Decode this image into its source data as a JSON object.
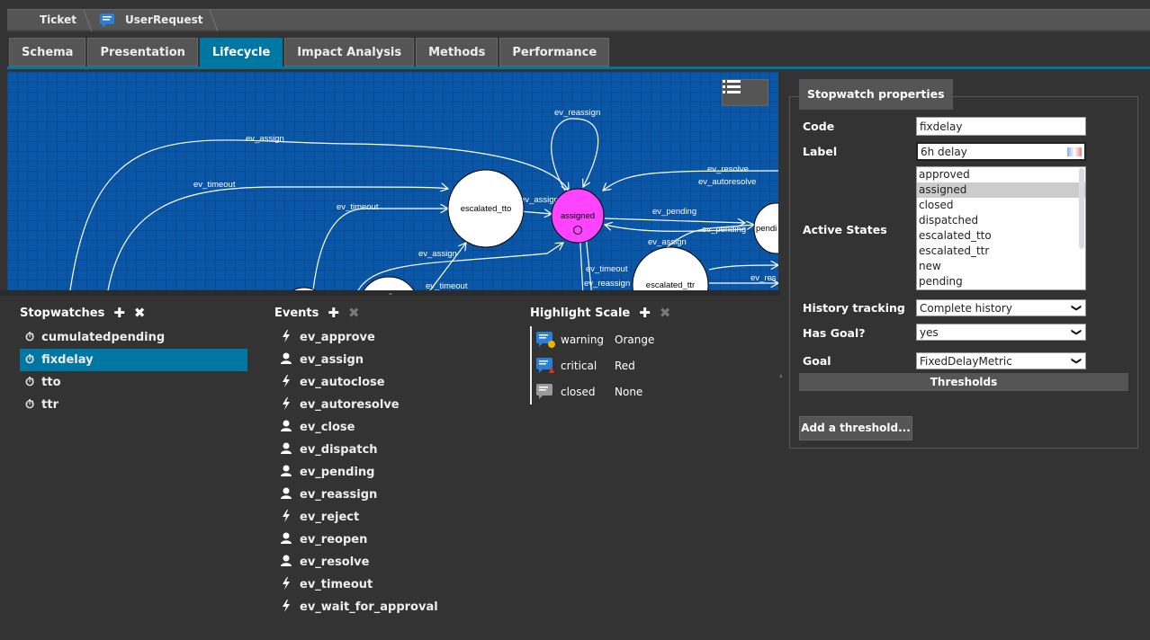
{
  "breadcrumb": {
    "items": [
      "Ticket",
      "UserRequest"
    ]
  },
  "tabs": [
    {
      "label": "Schema"
    },
    {
      "label": "Presentation"
    },
    {
      "label": "Lifecycle",
      "active": true
    },
    {
      "label": "Impact Analysis"
    },
    {
      "label": "Methods"
    },
    {
      "label": "Performance"
    }
  ],
  "graph": {
    "nodes": {
      "escalated_tto": "escalated_tto",
      "assigned": "assigned",
      "pending": "pendi",
      "escalated_ttr": "escalated_ttr"
    },
    "edge_labels": [
      "ev_reassign",
      "ev_assign",
      "ev_timeout",
      "ev_timeout",
      "ev_assign",
      "ev_resolve",
      "ev_autoresolve",
      "ev_pending",
      "ev_assign",
      "ev_pending",
      "ev_assign",
      "ev_timeout",
      "ev_timeout",
      "ev_reassign",
      "ev_res"
    ],
    "highlight_color": "#ff44ff",
    "background_color": "#0a57a8"
  },
  "stopwatches": {
    "title": "Stopwatches",
    "items": [
      "cumulatedpending",
      "fixdelay",
      "tto",
      "ttr"
    ],
    "selected": "fixdelay"
  },
  "events": {
    "title": "Events",
    "items": [
      {
        "label": "ev_approve",
        "icon": "bolt-icon"
      },
      {
        "label": "ev_assign",
        "icon": "user-icon"
      },
      {
        "label": "ev_autoclose",
        "icon": "bolt-icon"
      },
      {
        "label": "ev_autoresolve",
        "icon": "bolt-icon"
      },
      {
        "label": "ev_close",
        "icon": "user-icon"
      },
      {
        "label": "ev_dispatch",
        "icon": "user-icon"
      },
      {
        "label": "ev_pending",
        "icon": "user-icon"
      },
      {
        "label": "ev_reassign",
        "icon": "user-icon"
      },
      {
        "label": "ev_reject",
        "icon": "bolt-icon"
      },
      {
        "label": "ev_reopen",
        "icon": "user-icon"
      },
      {
        "label": "ev_resolve",
        "icon": "user-icon"
      },
      {
        "label": "ev_timeout",
        "icon": "bolt-icon"
      },
      {
        "label": "ev_wait_for_approval",
        "icon": "bolt-icon"
      }
    ]
  },
  "highlight_scale": {
    "title": "Highlight Scale",
    "items": [
      {
        "code": "warning",
        "color": "Orange"
      },
      {
        "code": "critical",
        "color": "Red"
      },
      {
        "code": "closed",
        "color": "None"
      }
    ]
  },
  "properties": {
    "title": "Stopwatch properties",
    "code_label": "Code",
    "code_value": "fixdelay",
    "label_label": "Label",
    "label_value": "6h delay",
    "states_label": "Active States",
    "states": [
      "approved",
      "assigned",
      "closed",
      "dispatched",
      "escalated_tto",
      "escalated_ttr",
      "new",
      "pending"
    ],
    "states_selected": "assigned",
    "history_label": "History tracking",
    "history_value": "Complete history",
    "hasgoal_label": "Has Goal?",
    "hasgoal_value": "yes",
    "goal_label": "Goal",
    "goal_value": "FixedDelayMetric",
    "thresholds_label": "Thresholds",
    "add_threshold": "Add a threshold..."
  },
  "colors": {
    "accent": "#0077a3",
    "background": "#333333"
  }
}
